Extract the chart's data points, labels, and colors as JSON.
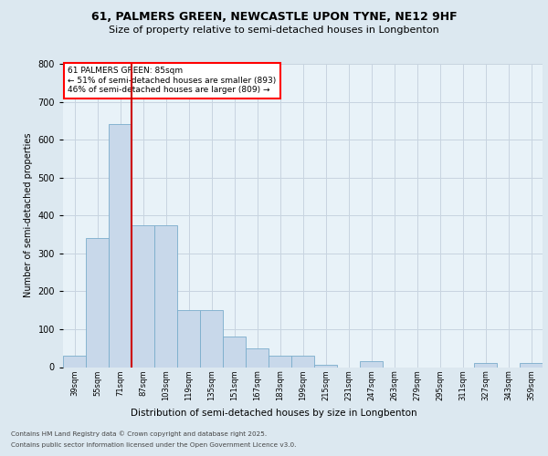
{
  "title1": "61, PALMERS GREEN, NEWCASTLE UPON TYNE, NE12 9HF",
  "title2": "Size of property relative to semi-detached houses in Longbenton",
  "xlabel": "Distribution of semi-detached houses by size in Longbenton",
  "ylabel": "Number of semi-detached properties",
  "footer1": "Contains HM Land Registry data © Crown copyright and database right 2025.",
  "footer2": "Contains public sector information licensed under the Open Government Licence v3.0.",
  "annotation_line1": "61 PALMERS GREEN: 85sqm",
  "annotation_line2": "← 51% of semi-detached houses are smaller (893)",
  "annotation_line3": "46% of semi-detached houses are larger (809) →",
  "bar_color": "#c8d8ea",
  "bar_edge_color": "#7aadcc",
  "red_line_color": "#cc0000",
  "grid_color": "#c8d4e0",
  "background_color": "#dce8f0",
  "plot_bg_color": "#e8f2f8",
  "categories": [
    "39sqm",
    "55sqm",
    "71sqm",
    "87sqm",
    "103sqm",
    "119sqm",
    "135sqm",
    "151sqm",
    "167sqm",
    "183sqm",
    "199sqm",
    "215sqm",
    "231sqm",
    "247sqm",
    "263sqm",
    "279sqm",
    "295sqm",
    "311sqm",
    "327sqm",
    "343sqm",
    "359sqm"
  ],
  "values": [
    30,
    340,
    640,
    375,
    375,
    150,
    150,
    80,
    50,
    30,
    30,
    5,
    0,
    15,
    0,
    0,
    0,
    0,
    10,
    0,
    10
  ],
  "ylim": [
    0,
    800
  ],
  "yticks": [
    0,
    100,
    200,
    300,
    400,
    500,
    600,
    700,
    800
  ],
  "red_line_x": 2.5
}
